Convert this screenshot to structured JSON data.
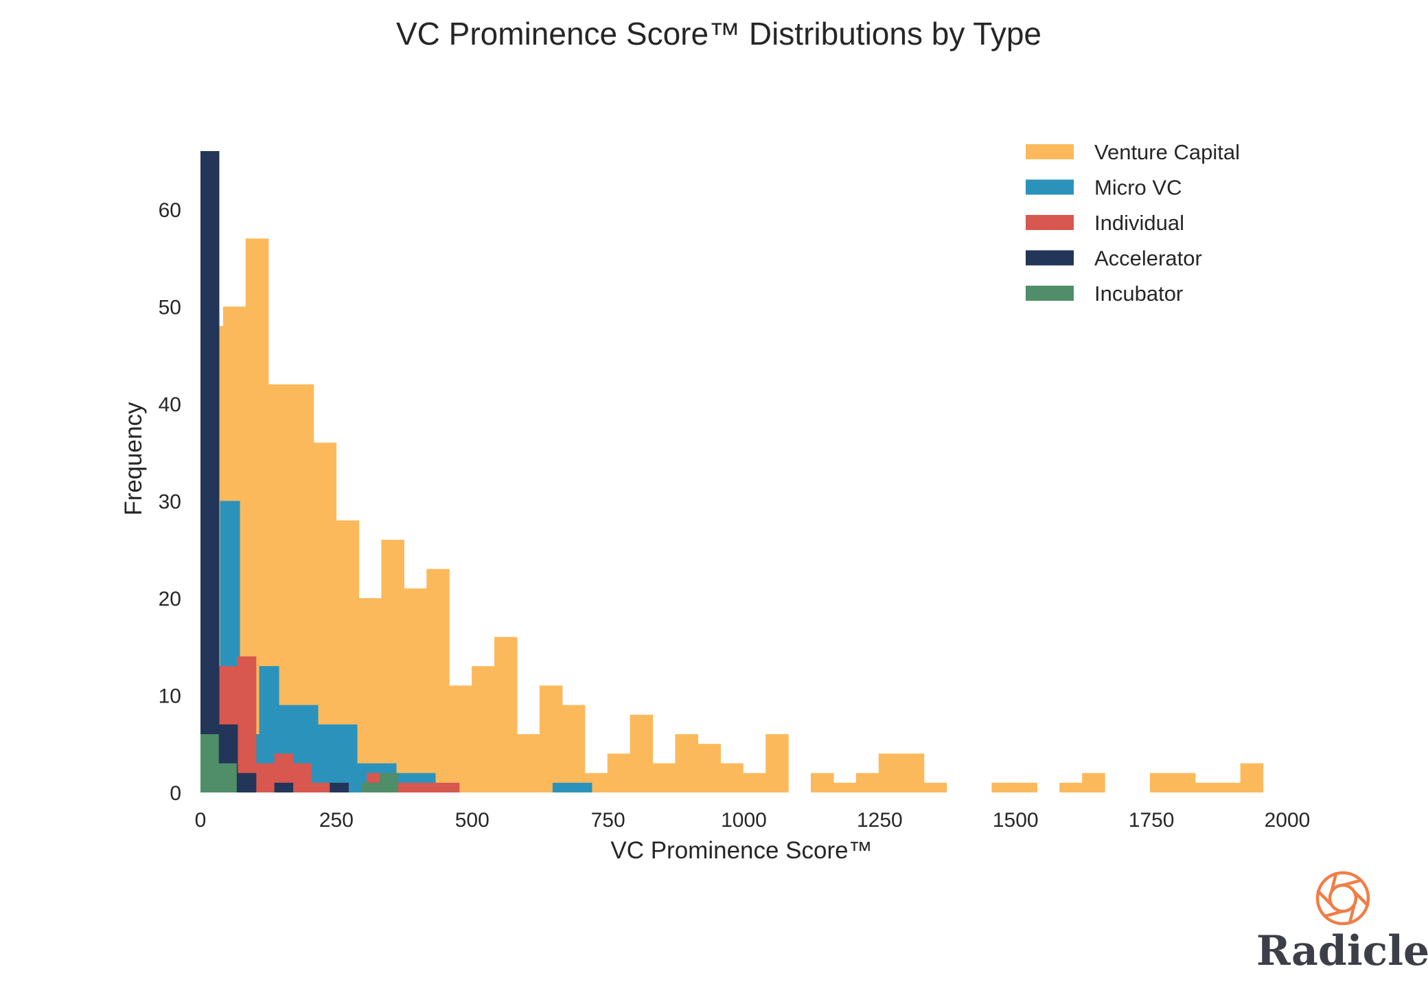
{
  "chart_data": {
    "type": "bar",
    "title": "VC Prominence Score™ Distributions by Type",
    "xlabel": "VC Prominence Score™",
    "ylabel": "Frequency",
    "xlim": [
      0,
      2000
    ],
    "ylim": [
      0,
      66
    ],
    "x_ticks": [
      0,
      250,
      500,
      750,
      1000,
      1250,
      1500,
      1750,
      2000
    ],
    "y_ticks": [
      0,
      10,
      20,
      30,
      40,
      50,
      60
    ],
    "grid": false,
    "legend_position": "top-right",
    "series": [
      {
        "name": "Venture Capital",
        "color": "#fcb95b",
        "bin_edges": [
          0,
          41.6,
          83.2,
          124.8,
          166.4,
          208,
          249.6,
          291.2,
          332.8,
          374.4,
          416,
          457.6,
          499.2,
          540.8,
          582.4,
          624,
          665.6,
          707.2,
          748.8,
          790.4,
          832,
          873.6,
          915.2,
          956.8,
          998.4,
          1040,
          1081.6,
          1123.2,
          1164.8,
          1206.4,
          1248,
          1289.6,
          1331.2,
          1372.8,
          1414.4,
          1456,
          1497.6,
          1539.2,
          1580.8,
          1622.4,
          1664,
          1705.6,
          1747.2,
          1788.8,
          1830.4,
          1872,
          1913.6,
          1955.2,
          1996.8
        ],
        "values": [
          48,
          50,
          57,
          42,
          42,
          36,
          28,
          20,
          26,
          21,
          23,
          11,
          13,
          16,
          6,
          11,
          9,
          2,
          4,
          8,
          3,
          6,
          5,
          3,
          2,
          6,
          0,
          2,
          1,
          2,
          4,
          4,
          1,
          0,
          0,
          1,
          1,
          0,
          1,
          2,
          0,
          0,
          2,
          2,
          1,
          1,
          3,
          0
        ]
      },
      {
        "name": "Micro VC",
        "color": "#2b93bb",
        "bin_edges": [
          0,
          36,
          72,
          108,
          144,
          180,
          216,
          252,
          288,
          324,
          360,
          396,
          432,
          468,
          504,
          540,
          576,
          612,
          648,
          684,
          720
        ],
        "values": [
          0,
          30,
          6,
          13,
          9,
          9,
          7,
          7,
          3,
          3,
          2,
          2,
          0,
          0,
          0,
          0,
          0,
          0,
          1,
          1
        ]
      },
      {
        "name": "Individual",
        "color": "#d8574f",
        "bin_edges": [
          0,
          34,
          68,
          102,
          136,
          170,
          204,
          238,
          272,
          306,
          340,
          374,
          408,
          442,
          476
        ],
        "values": [
          0,
          13,
          14,
          3,
          4,
          3,
          1,
          0,
          0,
          2,
          1,
          1,
          1,
          1
        ]
      },
      {
        "name": "Accelerator",
        "color": "#233558",
        "bin_edges": [
          0,
          34,
          68,
          102,
          136,
          170,
          204,
          238,
          272,
          306,
          340
        ],
        "values": [
          66,
          7,
          2,
          0,
          1,
          0,
          0,
          1,
          0,
          1
        ]
      },
      {
        "name": "Incubator",
        "color": "#4f8e68",
        "bin_edges": [
          0,
          33,
          66,
          99,
          132,
          165,
          198,
          231,
          264,
          297,
          330,
          363
        ],
        "values": [
          6,
          3,
          0,
          0,
          0,
          0,
          0,
          0,
          0,
          1,
          2
        ]
      }
    ]
  },
  "brand": {
    "name": "Radicle",
    "color": "#f07e46",
    "icon": "radicle-logo-icon"
  }
}
